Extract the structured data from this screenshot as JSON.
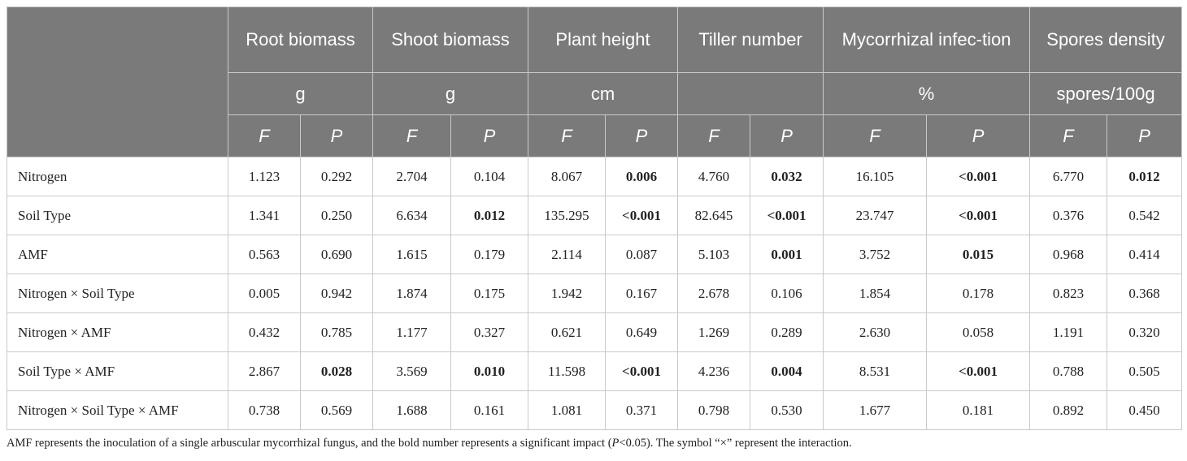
{
  "table": {
    "stub_header": "",
    "groups": [
      {
        "label": "Root biomass",
        "unit": "g",
        "f": "F",
        "p": "P"
      },
      {
        "label": "Shoot biomass",
        "unit": "g",
        "f": "F",
        "p": "P"
      },
      {
        "label": "Plant height",
        "unit": "cm",
        "f": "F",
        "p": "P"
      },
      {
        "label": "Tiller number",
        "unit": "",
        "f": "F",
        "p": "P"
      },
      {
        "label": "Mycorrhizal infec-tion",
        "unit": "%",
        "f": "F",
        "p": "P"
      },
      {
        "label": "Spores density",
        "unit": "spores/100g",
        "f": "F",
        "p": "P"
      }
    ],
    "rows": [
      {
        "name": "Nitrogen",
        "cells": [
          {
            "v": "1.123"
          },
          {
            "v": "0.292"
          },
          {
            "v": "2.704"
          },
          {
            "v": "0.104"
          },
          {
            "v": "8.067"
          },
          {
            "v": "0.006",
            "bold": true
          },
          {
            "v": "4.760"
          },
          {
            "v": "0.032",
            "bold": true
          },
          {
            "v": "16.105"
          },
          {
            "v": "<0.001",
            "bold": true
          },
          {
            "v": "6.770"
          },
          {
            "v": "0.012",
            "bold": true
          }
        ]
      },
      {
        "name": "Soil Type",
        "cells": [
          {
            "v": "1.341"
          },
          {
            "v": "0.250"
          },
          {
            "v": "6.634"
          },
          {
            "v": "0.012",
            "bold": true
          },
          {
            "v": "135.295"
          },
          {
            "v": "<0.001",
            "bold": true
          },
          {
            "v": "82.645"
          },
          {
            "v": "<0.001",
            "bold": true
          },
          {
            "v": "23.747"
          },
          {
            "v": "<0.001",
            "bold": true
          },
          {
            "v": "0.376"
          },
          {
            "v": "0.542"
          }
        ]
      },
      {
        "name": "AMF",
        "cells": [
          {
            "v": "0.563"
          },
          {
            "v": "0.690"
          },
          {
            "v": "1.615"
          },
          {
            "v": "0.179"
          },
          {
            "v": "2.114"
          },
          {
            "v": "0.087"
          },
          {
            "v": "5.103"
          },
          {
            "v": "0.001",
            "bold": true
          },
          {
            "v": "3.752"
          },
          {
            "v": "0.015",
            "bold": true
          },
          {
            "v": "0.968"
          },
          {
            "v": "0.414"
          }
        ]
      },
      {
        "name": "Nitrogen × Soil Type",
        "cells": [
          {
            "v": "0.005"
          },
          {
            "v": "0.942"
          },
          {
            "v": "1.874"
          },
          {
            "v": "0.175"
          },
          {
            "v": "1.942"
          },
          {
            "v": "0.167"
          },
          {
            "v": "2.678"
          },
          {
            "v": "0.106"
          },
          {
            "v": "1.854"
          },
          {
            "v": "0.178"
          },
          {
            "v": "0.823"
          },
          {
            "v": "0.368"
          }
        ]
      },
      {
        "name": "Nitrogen × AMF",
        "cells": [
          {
            "v": "0.432"
          },
          {
            "v": "0.785"
          },
          {
            "v": "1.177"
          },
          {
            "v": "0.327"
          },
          {
            "v": "0.621"
          },
          {
            "v": "0.649"
          },
          {
            "v": "1.269"
          },
          {
            "v": "0.289"
          },
          {
            "v": "2.630"
          },
          {
            "v": "0.058"
          },
          {
            "v": "1.191"
          },
          {
            "v": "0.320"
          }
        ]
      },
      {
        "name": "Soil Type × AMF",
        "cells": [
          {
            "v": "2.867"
          },
          {
            "v": "0.028",
            "bold": true
          },
          {
            "v": "3.569"
          },
          {
            "v": "0.010",
            "bold": true
          },
          {
            "v": "11.598"
          },
          {
            "v": "<0.001",
            "bold": true
          },
          {
            "v": "4.236"
          },
          {
            "v": "0.004",
            "bold": true
          },
          {
            "v": "8.531"
          },
          {
            "v": "<0.001",
            "bold": true
          },
          {
            "v": "0.788"
          },
          {
            "v": "0.505"
          }
        ]
      },
      {
        "name": "Nitrogen × Soil Type × AMF",
        "cells": [
          {
            "v": "0.738"
          },
          {
            "v": "0.569"
          },
          {
            "v": "1.688"
          },
          {
            "v": "0.161"
          },
          {
            "v": "1.081"
          },
          {
            "v": "0.371"
          },
          {
            "v": "0.798"
          },
          {
            "v": "0.530"
          },
          {
            "v": "1.677"
          },
          {
            "v": "0.181"
          },
          {
            "v": "0.892"
          },
          {
            "v": "0.450"
          }
        ]
      }
    ]
  },
  "footnote": {
    "part1": "AMF represents the inoculation of a single arbuscular mycorrhizal fungus, and the bold number represents a significant impact (",
    "p_symbol": "P",
    "part2": "<0.05). The symbol “×” represent the interaction."
  },
  "colors": {
    "header_bg": "#7a7a7a",
    "header_text": "#ffffff",
    "grid": "#c9c9c9"
  }
}
